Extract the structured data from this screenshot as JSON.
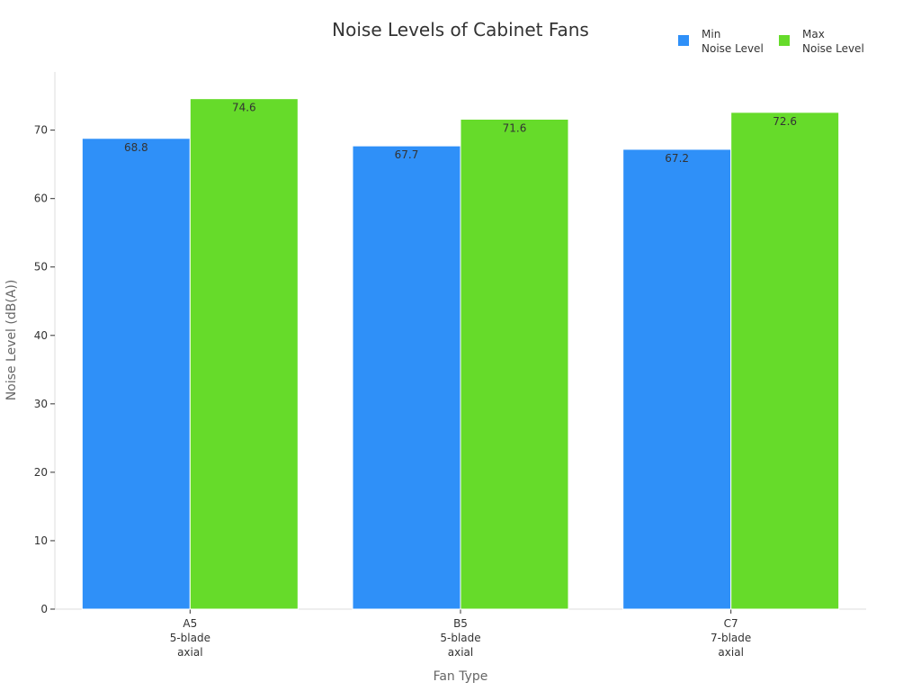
{
  "chart_data": {
    "type": "bar",
    "title": "Noise Levels of Cabinet Fans",
    "xlabel": "Fan Type",
    "ylabel": "Noise Level (dB(A))",
    "ylim": [
      0,
      78.5
    ],
    "yticks": [
      0,
      10,
      20,
      30,
      40,
      50,
      60,
      70
    ],
    "categories": [
      [
        "A5",
        "5-blade",
        "axial"
      ],
      [
        "B5",
        "5-blade",
        "axial"
      ],
      [
        "C7",
        "7-blade",
        "axial"
      ]
    ],
    "series": [
      {
        "name": [
          "Min",
          "Noise Level"
        ],
        "color": "#2f90f8",
        "values": [
          68.8,
          67.7,
          67.2
        ]
      },
      {
        "name": [
          "Max",
          "Noise Level"
        ],
        "color": "#66db2a",
        "values": [
          74.6,
          71.6,
          72.6
        ]
      }
    ],
    "grid": false,
    "legend_position": "top-right",
    "data_labels": true
  }
}
